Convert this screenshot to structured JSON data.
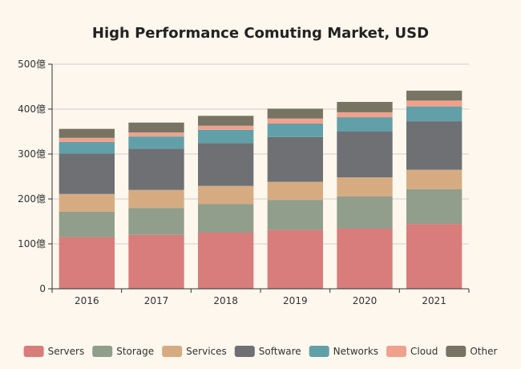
{
  "chart_data": {
    "type": "bar",
    "stacked": true,
    "title": "High Performance Comuting Market, USD",
    "xlabel": "",
    "ylabel": "",
    "categories": [
      "2016",
      "2017",
      "2018",
      "2019",
      "2020",
      "2021"
    ],
    "ylim": [
      0,
      500
    ],
    "yticks": [
      0,
      100,
      200,
      300,
      400,
      500
    ],
    "ytick_labels": [
      "0",
      "100億",
      "200億",
      "300億",
      "400億",
      "500億"
    ],
    "grid": true,
    "legend_position": "bottom",
    "series": [
      {
        "name": "Servers",
        "color": "#d87c7c",
        "values": [
          115,
          120,
          125,
          131,
          134,
          144
        ]
      },
      {
        "name": "Storage",
        "color": "#919e8b",
        "values": [
          57,
          60,
          64,
          67,
          72,
          78
        ]
      },
      {
        "name": "Services",
        "color": "#d7ab82",
        "values": [
          39,
          40,
          40,
          40,
          42,
          43
        ]
      },
      {
        "name": "Software",
        "color": "#6e7074",
        "values": [
          90,
          92,
          95,
          100,
          102,
          108
        ]
      },
      {
        "name": "Networks",
        "color": "#61a0a8",
        "values": [
          26,
          27,
          30,
          30,
          32,
          33
        ]
      },
      {
        "name": "Cloud",
        "color": "#efa18d",
        "values": [
          9,
          9,
          9,
          11,
          11,
          13
        ]
      },
      {
        "name": "Other",
        "color": "#787464",
        "values": [
          20,
          22,
          22,
          22,
          23,
          22
        ]
      }
    ]
  }
}
